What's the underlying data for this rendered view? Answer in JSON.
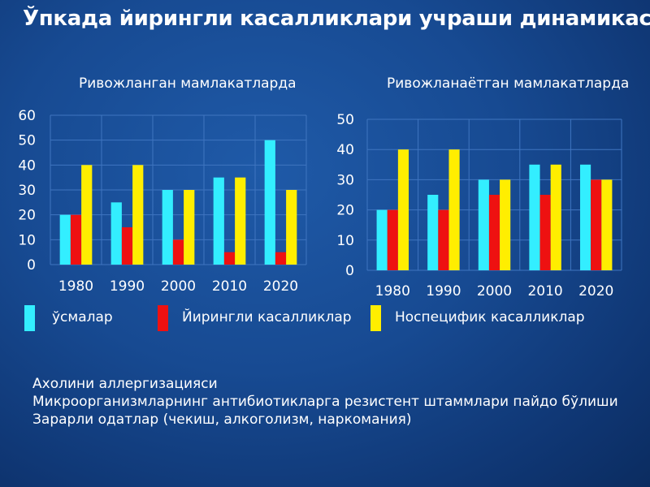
{
  "slide": {
    "title": "Ўпкада йирингли касалликлари учраши динамикаси"
  },
  "colors": {
    "series_1": "#33eeff",
    "series_2": "#ee1111",
    "series_3": "#ffee00"
  },
  "legend": {
    "items": [
      {
        "label": "ўсмалар",
        "color": "#33eeff"
      },
      {
        "label": "Йирингли касалликлар",
        "color": "#ee1111"
      },
      {
        "label": "Носпецифик касалликлар",
        "color": "#ffee00"
      }
    ]
  },
  "chart_data": [
    {
      "type": "bar",
      "title": "Ривожланган мамлакатларда",
      "categories": [
        "1980",
        "1990",
        "2000",
        "2010",
        "2020"
      ],
      "series": [
        {
          "name": "ўсмалар",
          "values": [
            20,
            25,
            30,
            35,
            50
          ]
        },
        {
          "name": "Йирингли касалликлар",
          "values": [
            20,
            15,
            10,
            5,
            5
          ]
        },
        {
          "name": "Носпецифик касалликлар",
          "values": [
            40,
            40,
            30,
            35,
            30
          ]
        }
      ],
      "yticks": [
        "0",
        "10",
        "20",
        "30",
        "40",
        "50",
        "60"
      ],
      "ylim": [
        0,
        60
      ],
      "grid": true,
      "legend": "bottom"
    },
    {
      "type": "bar",
      "title": "Ривожланаётган мамлакатларда",
      "categories": [
        "1980",
        "1990",
        "2000",
        "2010",
        "2020"
      ],
      "series": [
        {
          "name": "ўсмалар",
          "values": [
            20,
            25,
            30,
            35,
            35
          ]
        },
        {
          "name": "Йирингли касалликлар",
          "values": [
            20,
            20,
            25,
            25,
            30
          ]
        },
        {
          "name": "Носпецифик касалликлар",
          "values": [
            40,
            40,
            30,
            35,
            30
          ]
        }
      ],
      "yticks": [
        "0",
        "10",
        "20",
        "30",
        "40",
        "50"
      ],
      "ylim": [
        0,
        50
      ],
      "grid": true,
      "legend": "bottom"
    }
  ],
  "notes": {
    "lines": [
      "Ахолини аллергизацияси",
      "Микроорганизмларнинг антибиотикларга резистент штаммлари пайдо бўлиши",
      "Зарарли одатлар (чекиш, алкоголизм, наркомания)"
    ]
  }
}
